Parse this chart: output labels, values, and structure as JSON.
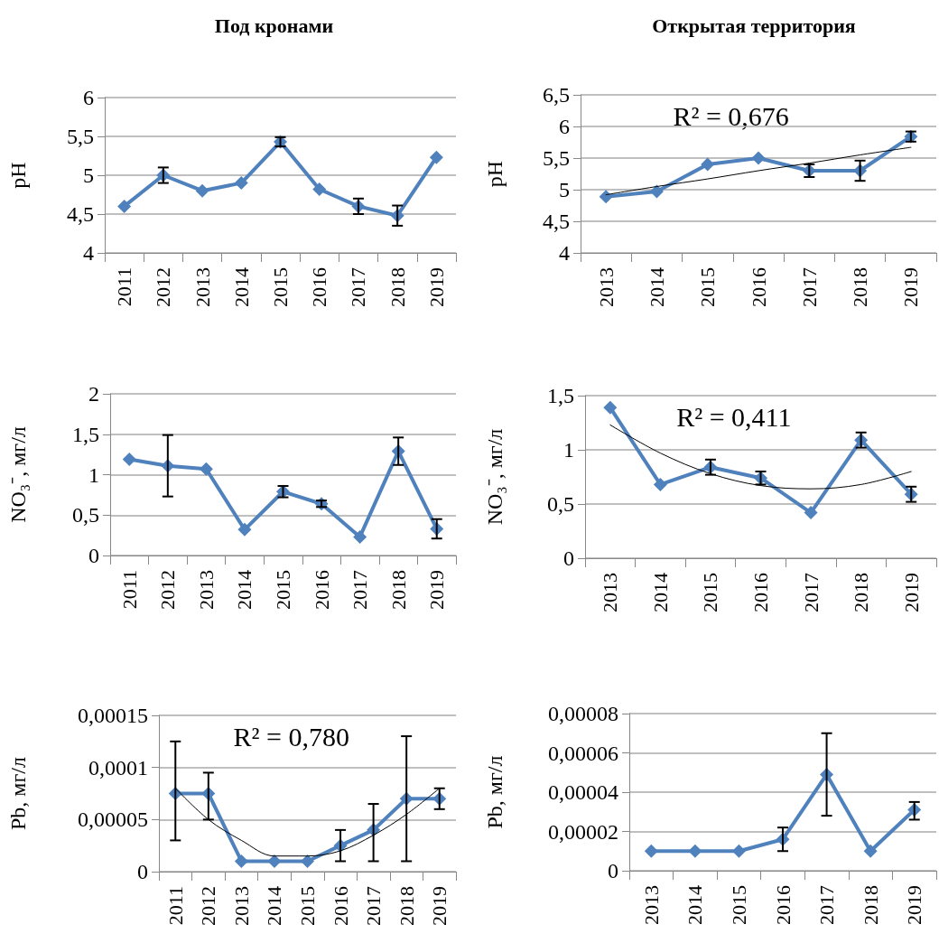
{
  "chart_data": [
    {
      "type": "line",
      "title": "Под кронами",
      "ylabel": "pH",
      "categories": [
        "2011",
        "2012",
        "2013",
        "2014",
        "2015",
        "2016",
        "2017",
        "2018",
        "2019"
      ],
      "ylim": [
        4,
        6
      ],
      "yticks": [
        4,
        {
          "value": 4.5,
          "label": "4,5"
        },
        5,
        {
          "value": 5.5,
          "label": "5,5"
        },
        6
      ],
      "grid": "y",
      "marker": "diamond",
      "series": [
        {
          "color": "#4f81bd",
          "values": [
            4.6,
            5.0,
            4.8,
            4.9,
            5.43,
            4.82,
            4.6,
            4.48,
            5.23
          ],
          "errors": [
            null,
            [
              4.9,
              5.1
            ],
            null,
            null,
            [
              5.37,
              5.49
            ],
            null,
            [
              4.5,
              4.7
            ],
            [
              4.35,
              4.61
            ],
            null
          ]
        }
      ]
    },
    {
      "type": "line",
      "title": "Открытая территория",
      "ylabel": "pH",
      "categories": [
        "2013",
        "2014",
        "2015",
        "2016",
        "2017",
        "2018",
        "2019"
      ],
      "ylim": [
        4,
        6.5
      ],
      "yticks": [
        4,
        {
          "value": 4.5,
          "label": "4,5"
        },
        5,
        {
          "value": 5.5,
          "label": "5,5"
        },
        6,
        {
          "value": 6.5,
          "label": "6,5"
        }
      ],
      "grid": "y",
      "marker": "diamond",
      "annotations": [
        "R² = 0,676"
      ],
      "series": [
        {
          "color": "#4f81bd",
          "values": [
            4.89,
            4.97,
            5.4,
            5.5,
            5.3,
            5.3,
            5.84
          ],
          "errors": [
            null,
            null,
            null,
            null,
            [
              5.2,
              5.4
            ],
            [
              5.14,
              5.46
            ],
            [
              5.76,
              5.92
            ]
          ]
        },
        {
          "type": "line",
          "color": "#000000",
          "marker": "none",
          "values": [
            4.92,
            5.05,
            5.17,
            5.3,
            5.42,
            5.55,
            5.67
          ]
        }
      ]
    },
    {
      "type": "line",
      "ylabel": "NO₃⁻, мг/л",
      "categories": [
        "2011",
        "2012",
        "2013",
        "2014",
        "2015",
        "2016",
        "2017",
        "2018",
        "2019"
      ],
      "ylim": [
        0,
        2
      ],
      "yticks": [
        0,
        {
          "value": 0.5,
          "label": "0,5"
        },
        1,
        {
          "value": 1.5,
          "label": "1,5"
        },
        2
      ],
      "grid": "y",
      "marker": "diamond",
      "series": [
        {
          "color": "#4f81bd",
          "values": [
            1.19,
            1.11,
            1.07,
            0.32,
            0.79,
            0.64,
            0.23,
            1.29,
            0.33
          ],
          "errors": [
            null,
            [
              0.73,
              1.49
            ],
            null,
            null,
            [
              0.72,
              0.86
            ],
            [
              0.6,
              0.68
            ],
            null,
            [
              1.12,
              1.46
            ],
            [
              0.21,
              0.45
            ]
          ]
        }
      ]
    },
    {
      "type": "line",
      "ylabel": "NO₃⁻, мг/л",
      "categories": [
        "2013",
        "2014",
        "2015",
        "2016",
        "2017",
        "2018",
        "2019"
      ],
      "ylim": [
        0,
        1.5
      ],
      "yticks": [
        0,
        {
          "value": 0.5,
          "label": "0,5"
        },
        1,
        {
          "value": 1.5,
          "label": "1,5"
        }
      ],
      "grid": "y",
      "marker": "diamond",
      "annotations": [
        "R² = 0,411"
      ],
      "series": [
        {
          "color": "#4f81bd",
          "values": [
            1.39,
            0.68,
            0.84,
            0.74,
            0.42,
            1.09,
            0.59
          ],
          "errors": [
            null,
            null,
            [
              0.77,
              0.91
            ],
            [
              0.68,
              0.8
            ],
            null,
            [
              1.02,
              1.16
            ],
            [
              0.52,
              0.66
            ]
          ]
        },
        {
          "type": "line",
          "color": "#000000",
          "marker": "none",
          "values": [
            1.23,
            0.97,
            0.78,
            0.67,
            0.64,
            0.68,
            0.8
          ]
        }
      ]
    },
    {
      "type": "line",
      "ylabel": "Pb, мг/л",
      "categories": [
        "2011",
        "2012",
        "2013",
        "2014",
        "2015",
        "2016",
        "2017",
        "2018",
        "2019"
      ],
      "ylim": [
        0,
        0.00015
      ],
      "yticks": [
        0,
        {
          "value": 5e-05,
          "label": "0,00005"
        },
        {
          "value": 0.0001,
          "label": "0,0001"
        },
        {
          "value": 0.00015,
          "label": "0,00015"
        }
      ],
      "grid": "y",
      "marker": "diamond",
      "annotations": [
        "R² = 0,780"
      ],
      "series": [
        {
          "color": "#4f81bd",
          "values": [
            7.5e-05,
            7.5e-05,
            1e-05,
            1e-05,
            1e-05,
            2.5e-05,
            4e-05,
            7e-05,
            7e-05
          ],
          "errors": [
            [
              3e-05,
              0.000125
            ],
            [
              5e-05,
              9.5e-05
            ],
            null,
            null,
            null,
            [
              1e-05,
              4e-05
            ],
            [
              1e-05,
              6.5e-05
            ],
            [
              1e-05,
              0.00013
            ],
            [
              6e-05,
              8e-05
            ]
          ]
        },
        {
          "type": "line",
          "color": "#000000",
          "marker": "none",
          "values": [
            8e-05,
            5e-05,
            3e-05,
            1.5e-05,
            1.5e-05,
            2e-05,
            3.5e-05,
            5.5e-05,
            8e-05
          ]
        }
      ]
    },
    {
      "type": "line",
      "ylabel": "Pb, мг/л",
      "categories": [
        "2013",
        "2014",
        "2015",
        "2016",
        "2017",
        "2018",
        "2019"
      ],
      "ylim": [
        0,
        8e-05
      ],
      "yticks": [
        0,
        {
          "value": 2e-05,
          "label": "0,00002"
        },
        {
          "value": 4e-05,
          "label": "0,00004"
        },
        {
          "value": 6e-05,
          "label": "0,00006"
        },
        {
          "value": 8e-05,
          "label": "0,00008"
        }
      ],
      "grid": "y",
      "marker": "diamond",
      "series": [
        {
          "color": "#4f81bd",
          "values": [
            1e-05,
            1e-05,
            1e-05,
            1.6e-05,
            4.9e-05,
            1e-05,
            3.1e-05
          ],
          "errors": [
            null,
            null,
            null,
            [
              1e-05,
              2.2e-05
            ],
            [
              2.8e-05,
              7e-05
            ],
            null,
            [
              2.6e-05,
              3.5e-05
            ]
          ]
        }
      ]
    }
  ]
}
